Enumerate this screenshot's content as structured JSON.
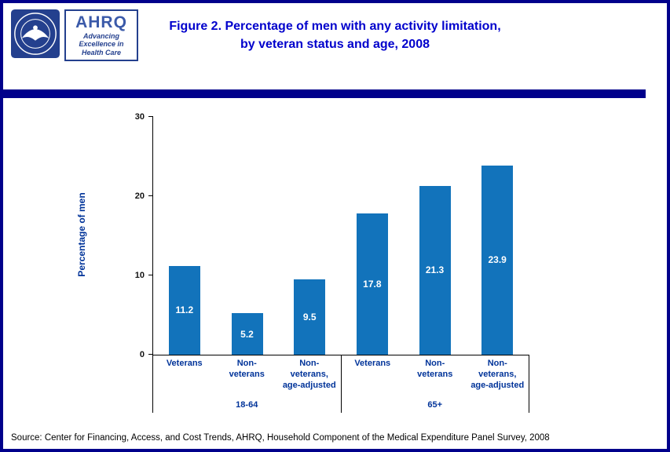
{
  "page": {
    "colors": {
      "border_navy": "#00008B",
      "title_blue": "#0000CC",
      "label_blue": "#003399",
      "bar_blue": "#1273BB"
    }
  },
  "header": {
    "title_line1": "Figure 2. Percentage of men with any activity limitation,",
    "title_line2": "by veteran status and age, 2008",
    "ahrq": {
      "name": "AHRQ",
      "tagline_line1": "Advancing",
      "tagline_line2": "Excellence in",
      "tagline_line3": "Health Care"
    }
  },
  "chart_data": {
    "type": "bar",
    "title": "Figure 2. Percentage of men with any activity limitation, by veteran status and age, 2008",
    "ylabel": "Percentage of men",
    "ylim": [
      0,
      30
    ],
    "yticks": [
      0,
      10,
      20,
      30
    ],
    "bar_color": "#1273BB",
    "value_label_color": "#FFFFFF",
    "grid": false,
    "legend": "none",
    "groups": [
      {
        "label": "18-64",
        "categories": [
          "Veterans",
          "Non-\nveterans",
          "Non-\nveterans,\nage-adjusted"
        ],
        "values": [
          11.2,
          5.2,
          9.5
        ]
      },
      {
        "label": "65+",
        "categories": [
          "Veterans",
          "Non-\nveterans",
          "Non-\nveterans,\nage-adjusted"
        ],
        "values": [
          17.8,
          21.3,
          23.9
        ]
      }
    ]
  },
  "footer": {
    "source": "Source: Center for Financing, Access, and Cost Trends, AHRQ, Household Component of the Medical Expenditure Panel Survey, 2008"
  }
}
